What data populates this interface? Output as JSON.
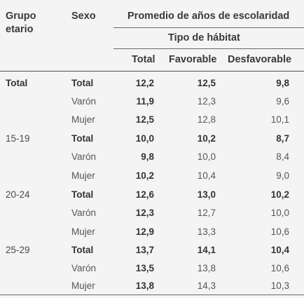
{
  "header": {
    "grupo_line1": "Grupo",
    "grupo_line2": "etario",
    "sexo": "Sexo",
    "promedio": "Promedio de años de escolaridad",
    "tipo": "Tipo de hábitat",
    "col_total": "Total",
    "col_favorable": "Favorable",
    "col_desfavorable": "Desfavorable"
  },
  "rows": [
    {
      "group": "Total",
      "sex": "Total",
      "total": "12,2",
      "favorable": "12,5",
      "desfavorable": "9,8"
    },
    {
      "group": "",
      "sex": "Varón",
      "total": "11,9",
      "favorable": "12,3",
      "desfavorable": "9,6"
    },
    {
      "group": "",
      "sex": "Mujer",
      "total": "12,5",
      "favorable": "12,8",
      "desfavorable": "10,1"
    },
    {
      "group": "15-19",
      "sex": "Total",
      "total": "10,0",
      "favorable": "10,2",
      "desfavorable": "8,7"
    },
    {
      "group": "",
      "sex": "Varón",
      "total": "9,8",
      "favorable": "10,0",
      "desfavorable": "8,4"
    },
    {
      "group": "",
      "sex": "Mujer",
      "total": "10,2",
      "favorable": "10,4",
      "desfavorable": "9,0"
    },
    {
      "group": "20-24",
      "sex": "Total",
      "total": "12,6",
      "favorable": "13,0",
      "desfavorable": "10,2"
    },
    {
      "group": "",
      "sex": "Varón",
      "total": "12,3",
      "favorable": "12,7",
      "desfavorable": "10,0"
    },
    {
      "group": "",
      "sex": "Mujer",
      "total": "12,9",
      "favorable": "13,3",
      "desfavorable": "10,6"
    },
    {
      "group": "25-29",
      "sex": "Total",
      "total": "13,7",
      "favorable": "14,1",
      "desfavorable": "10,4"
    },
    {
      "group": "",
      "sex": "Varón",
      "total": "13,5",
      "favorable": "13,8",
      "desfavorable": "10,6"
    },
    {
      "group": "",
      "sex": "Mujer",
      "total": "13,8",
      "favorable": "14,3",
      "desfavorable": "10,3"
    }
  ]
}
